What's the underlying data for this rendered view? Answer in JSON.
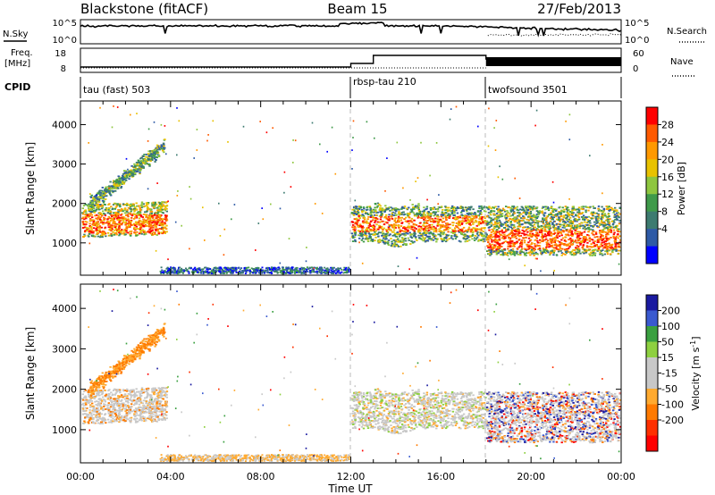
{
  "header": {
    "station": "Blackstone (fitACF)",
    "beam": "Beam 15",
    "date": "27/Feb/2013"
  },
  "strip_labels": {
    "nsky": "N.Sky",
    "nsky_ticks": [
      "10^5",
      "10^0"
    ],
    "nsearch": "N.Search",
    "nsearch_ticks": [
      "10^5",
      "10^0"
    ],
    "freq": "Freq.",
    "freq_unit": "[MHz]",
    "freq_ticks": [
      "18",
      "8"
    ],
    "nave": "Nave",
    "nave_ticks": [
      "60",
      "0"
    ],
    "cpid": "CPID"
  },
  "cpid_segments": [
    {
      "label": "tau (fast) 503",
      "start_hour": 0
    },
    {
      "label": "rbsp-tau 210",
      "start_hour": 12
    },
    {
      "label": "twofsound 3501",
      "start_hour": 18
    }
  ],
  "chart_data": [
    {
      "type": "heatmap",
      "name": "power",
      "ylabel": "Slant Range [km]",
      "xlabel": "Time UT",
      "x_ticks": [
        "00:00",
        "04:00",
        "08:00",
        "12:00",
        "16:00",
        "20:00",
        "00:00"
      ],
      "xlim_hours": [
        0,
        24
      ],
      "ylim": [
        180,
        4600
      ],
      "y_ticks": [
        1000,
        2000,
        3000,
        4000
      ],
      "colorbar": {
        "label": "Power [dB]",
        "ticks": [
          "28",
          "24",
          "20",
          "16",
          "12",
          "8",
          "4"
        ],
        "colors": [
          "#ff0000",
          "#ff5a00",
          "#ff9900",
          "#e8c200",
          "#8ec63f",
          "#3f9a4a",
          "#3d7b70",
          "#2e5aa6",
          "#0000ff"
        ]
      }
    },
    {
      "type": "heatmap",
      "name": "velocity",
      "ylabel": "Slant Range [km]",
      "xlabel": "Time UT",
      "x_ticks": [
        "00:00",
        "04:00",
        "08:00",
        "12:00",
        "16:00",
        "20:00",
        "00:00"
      ],
      "xlim_hours": [
        0,
        24
      ],
      "ylim": [
        180,
        4600
      ],
      "y_ticks": [
        1000,
        2000,
        3000,
        4000
      ],
      "colorbar": {
        "label": "Velocity [m s^-1]",
        "ticks": [
          "200",
          "100",
          "50",
          "15",
          "-15",
          "-50",
          "-100",
          "-200"
        ],
        "colors": [
          "#1a1aa0",
          "#3a5ad0",
          "#3aa040",
          "#8ed040",
          "#c8c8c8",
          "#c8c8c8",
          "#ffaa30",
          "#ff7a00",
          "#ff3000",
          "#ff0000"
        ]
      }
    }
  ],
  "xaxis_title": "Time UT"
}
